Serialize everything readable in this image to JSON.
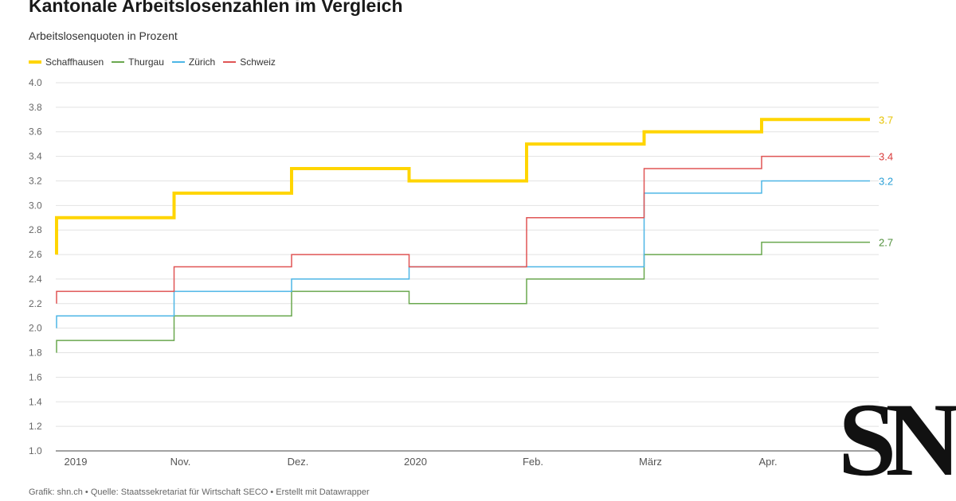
{
  "title": "Kantonale Arbeitslosenzahlen im Vergleich",
  "subtitle": "Arbeitslosenquoten in Prozent",
  "source": "Grafik: shn.ch • Quelle: Staatssekretariat für Wirtschaft SECO • Erstellt mit Datawrapper",
  "logo_text": "SN",
  "chart_data": {
    "type": "line",
    "step": true,
    "title": "Kantonale Arbeitslosenzahlen im Vergleich",
    "subtitle": "Arbeitslosenquoten in Prozent",
    "ylim": [
      1.0,
      4.0
    ],
    "y_ticks": [
      "1.0",
      "1.2",
      "1.4",
      "1.6",
      "1.8",
      "2.0",
      "2.2",
      "2.4",
      "2.6",
      "2.8",
      "3.0",
      "3.2",
      "3.4",
      "3.6",
      "3.8",
      "4.0"
    ],
    "x_ticks": [
      {
        "label": "2019",
        "month": 0
      },
      {
        "label": "Nov.",
        "month": 1
      },
      {
        "label": "Dez.",
        "month": 2
      },
      {
        "label": "2020",
        "month": 3
      },
      {
        "label": "Feb.",
        "month": 4
      },
      {
        "label": "März",
        "month": 5
      },
      {
        "label": "Apr.",
        "month": 6
      }
    ],
    "x": [
      "2019-10",
      "2019-11",
      "2019-12",
      "2020-01",
      "2020-02",
      "2020-03",
      "2020-04"
    ],
    "grid": true,
    "legend_position": "top-left",
    "series": [
      {
        "name": "Schaffhausen",
        "color": "#ffd500",
        "stroke": 4,
        "start": 2.6,
        "values": [
          2.9,
          3.1,
          3.3,
          3.2,
          3.5,
          3.6,
          3.7
        ],
        "end_label": "3.7",
        "end_color": "#e6c200"
      },
      {
        "name": "Thurgau",
        "color": "#6aa84f",
        "stroke": 1.5,
        "start": 1.8,
        "values": [
          1.9,
          2.1,
          2.3,
          2.2,
          2.4,
          2.6,
          2.7
        ],
        "end_label": "2.7",
        "end_color": "#4f8f3a"
      },
      {
        "name": "Zürich",
        "color": "#4db6e6",
        "stroke": 1.5,
        "start": 2.0,
        "values": [
          2.1,
          2.3,
          2.4,
          2.5,
          2.5,
          3.1,
          3.2
        ],
        "end_label": "3.2",
        "end_color": "#2a9fd6"
      },
      {
        "name": "Schweiz",
        "color": "#e05555",
        "stroke": 1.5,
        "start": 2.2,
        "values": [
          2.3,
          2.5,
          2.6,
          2.5,
          2.9,
          3.3,
          3.4
        ],
        "end_label": "3.4",
        "end_color": "#d93a3a"
      }
    ]
  }
}
